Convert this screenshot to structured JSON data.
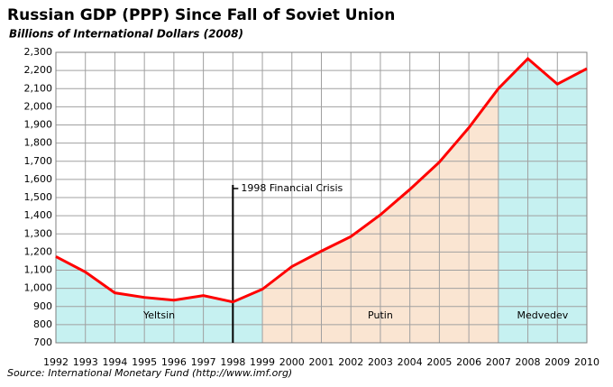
{
  "chart_data": {
    "type": "line",
    "title": "Russian GDP (PPP) Since Fall of Soviet Union",
    "subtitle": "Billions of International Dollars (2008)",
    "source": "Source: International Monetary Fund (http://www.imf.org)",
    "x": [
      1992,
      1993,
      1994,
      1995,
      1996,
      1997,
      1998,
      1999,
      2000,
      2001,
      2002,
      2003,
      2004,
      2005,
      2006,
      2007,
      2008,
      2009,
      2010
    ],
    "series": [
      {
        "name": "Russian GDP",
        "color": "#ff0000",
        "values": [
          1175,
          1090,
          975,
          950,
          935,
          960,
          925,
          995,
          1120,
          1205,
          1285,
          1405,
          1545,
          1695,
          1885,
          2100,
          2265,
          2125,
          2210
        ]
      }
    ],
    "xlim": [
      1992,
      2010
    ],
    "xticks": [
      1992,
      1993,
      1994,
      1995,
      1996,
      1997,
      1998,
      1999,
      2000,
      2001,
      2002,
      2003,
      2004,
      2005,
      2006,
      2007,
      2008,
      2009,
      2010
    ],
    "ylim": [
      700,
      2300
    ],
    "yticks": [
      700,
      800,
      900,
      {
        "value": 1000,
        "label": "1,000"
      },
      {
        "value": 1100,
        "label": "1,100"
      },
      {
        "value": 1200,
        "label": "1,200"
      },
      {
        "value": 1300,
        "label": "1,300"
      },
      {
        "value": 1400,
        "label": "1,400"
      },
      {
        "value": 1500,
        "label": "1,500"
      },
      {
        "value": 1600,
        "label": "1,600"
      },
      {
        "value": 1700,
        "label": "1,700"
      },
      {
        "value": 1800,
        "label": "1,800"
      },
      {
        "value": 1900,
        "label": "1,900"
      },
      {
        "value": 2000,
        "label": "2,000"
      },
      {
        "value": 2100,
        "label": "2,100"
      },
      {
        "value": 2200,
        "label": "2,200"
      },
      {
        "value": 2300,
        "label": "2,300"
      }
    ],
    "grid": true,
    "regions": [
      {
        "label": "Yeltsin",
        "start": 1992,
        "end": 1999,
        "color": "#c6f1f1"
      },
      {
        "label": "Putin",
        "start": 1999,
        "end": 2007,
        "color": "#fae5d2"
      },
      {
        "label": "Medvedev",
        "start": 2007,
        "end": 2010,
        "color": "#c6f1f1"
      }
    ],
    "annotations": [
      {
        "x": 1998,
        "text": "1998 Financial Crisis"
      }
    ]
  }
}
